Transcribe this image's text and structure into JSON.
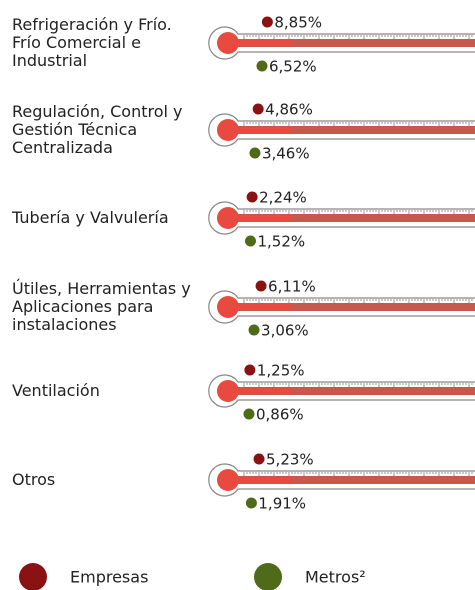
{
  "chart_data": {
    "type": "thermometer",
    "categories": [
      "Refrigeración y Frío. Frío Comercial e Industrial",
      "Regulación, Control y Gestión Técnica Centralizada",
      "Tubería y Valvulería",
      "Útiles, Herramientas y Aplicaciones para instalaciones",
      "Ventilación",
      "Otros"
    ],
    "series": [
      {
        "name": "Empresas",
        "color": "#8b1212",
        "values": [
          8.85,
          4.86,
          2.24,
          6.11,
          1.25,
          5.23
        ],
        "value_labels": [
          "8,85%",
          "4,86%",
          "2,24%",
          "6,11%",
          "1,25%",
          "5,23%"
        ]
      },
      {
        "name": "Metros²",
        "color": "#4f6b1a",
        "values": [
          6.52,
          3.46,
          1.52,
          3.06,
          0.86,
          1.91
        ],
        "value_labels": [
          "6,52%",
          "3,46%",
          "1,52%",
          "3,06%",
          "0,86%",
          "1,91%"
        ]
      }
    ]
  }
}
